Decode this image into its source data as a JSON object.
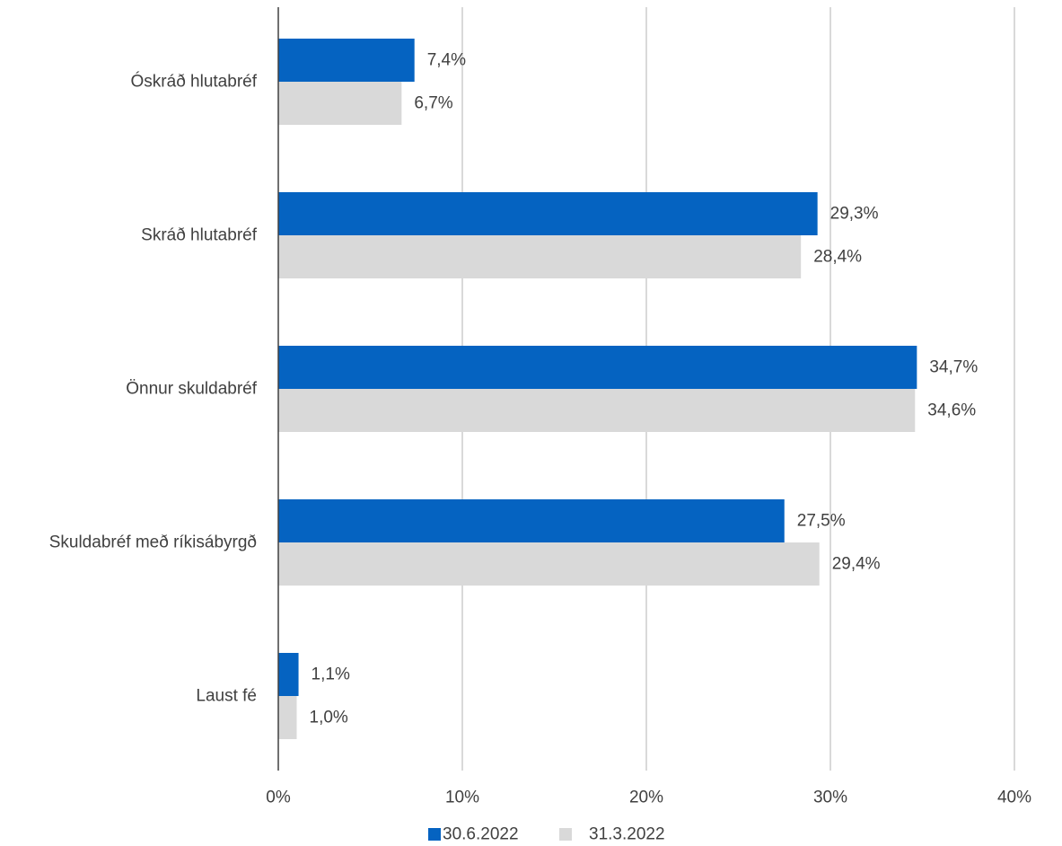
{
  "chart_data": {
    "type": "bar",
    "orientation": "horizontal",
    "categories": [
      "Óskráð hlutabréf",
      "Skráð hlutabréf",
      "Önnur skuldabréf",
      "Skuldabréf með ríkisábyrgð",
      "Laust fé"
    ],
    "series": [
      {
        "name": "30.6.2022",
        "color": "#0563c1",
        "values": [
          7.4,
          29.3,
          34.7,
          27.5,
          1.1
        ],
        "labels": [
          "7,4%",
          "29,3%",
          "34,7%",
          "27,5%",
          "1,1%"
        ]
      },
      {
        "name": "31.3.2022",
        "color": "#d9d9d9",
        "values": [
          6.7,
          28.4,
          34.6,
          29.4,
          1.0
        ],
        "labels": [
          "6,7%",
          "28,4%",
          "34,6%",
          "29,4%",
          "1,0%"
        ]
      }
    ],
    "xlim": [
      0,
      40
    ],
    "xticks": [
      0,
      10,
      20,
      30,
      40
    ],
    "xtick_labels": [
      "0%",
      "10%",
      "20%",
      "30%",
      "40%"
    ],
    "grid": true,
    "legend_position": "bottom",
    "title": "",
    "xlabel": "",
    "ylabel": ""
  }
}
